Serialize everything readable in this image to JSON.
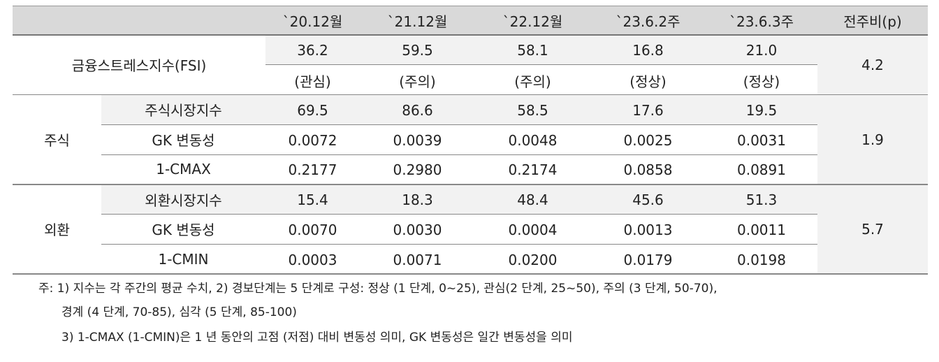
{
  "table": {
    "header": [
      "`20.12월",
      "`21.12월",
      "`22.12월",
      "`23.6.2주",
      "`23.6.3주",
      "전주비(p)"
    ],
    "groups": [
      {
        "label": "금융스트레스지수(FSI)",
        "change": "4.2",
        "rows": [
          {
            "values": [
              "36.2",
              "59.5",
              "58.1",
              "16.8",
              "21.0"
            ]
          },
          {
            "values": [
              "(관심)",
              "(주의)",
              "(주의)",
              "(정상)",
              "(정상)"
            ]
          }
        ]
      },
      {
        "label": "주식",
        "change": "1.9",
        "rows": [
          {
            "name": "주식시장지수",
            "values": [
              "69.5",
              "86.6",
              "58.5",
              "17.6",
              "19.5"
            ]
          },
          {
            "name": "GK 변동성",
            "values": [
              "0.0072",
              "0.0039",
              "0.0048",
              "0.0025",
              "0.0031"
            ]
          },
          {
            "name": "1-CMAX",
            "values": [
              "0.2177",
              "0.2980",
              "0.2174",
              "0.0858",
              "0.0891"
            ]
          }
        ]
      },
      {
        "label": "외환",
        "change": "5.7",
        "rows": [
          {
            "name": "외환시장지수",
            "values": [
              "15.4",
              "18.3",
              "48.4",
              "45.6",
              "51.3"
            ]
          },
          {
            "name": "GK 변동성",
            "values": [
              "0.0070",
              "0.0030",
              "0.0004",
              "0.0013",
              "0.0011"
            ]
          },
          {
            "name": "1-CMIN",
            "values": [
              "0.0003",
              "0.0071",
              "0.0200",
              "0.0179",
              "0.0198"
            ]
          }
        ]
      }
    ]
  },
  "notes": [
    "주: 1) 지수는 각 주간의 평균 수치, 2) 경보단계는 5 단계로 구성: 정상 (1 단계, 0~25), 관심(2 단계, 25~50), 주의 (3 단계, 50-70),",
    "경계 (4 단계, 70-85), 심각 (5 단계, 85-100)",
    "3) 1-CMAX (1-CMIN)은 1 년 동안의 고점 (저점) 대비 변동성 의미, GK 변동성은 일간 변동성을 의미"
  ]
}
